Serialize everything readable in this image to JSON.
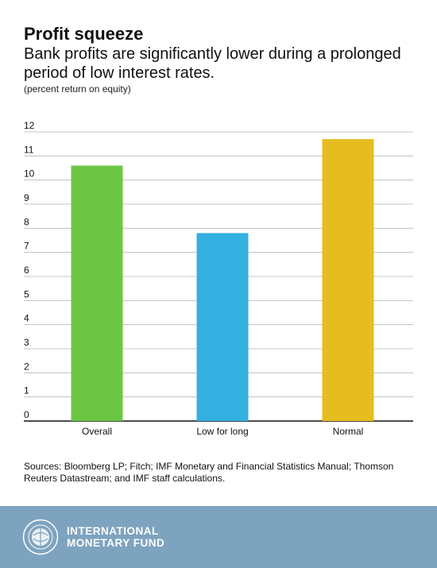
{
  "header": {
    "title": "Profit squeeze",
    "subtitle": "Bank profits are significantly lower during a prolonged period of low interest rates.",
    "unit": "(percent return on equity)"
  },
  "chart_data": {
    "type": "bar",
    "categories": [
      "Overall",
      "Low for long",
      "Normal"
    ],
    "values": [
      10.6,
      7.8,
      11.7
    ],
    "colors": [
      "#6cc644",
      "#34b0e0",
      "#e6bd1e"
    ],
    "ylim": [
      0,
      12
    ],
    "yticks": [
      0,
      1,
      2,
      3,
      4,
      5,
      6,
      7,
      8,
      9,
      10,
      11,
      12
    ],
    "grid": true
  },
  "sources": "Sources: Bloomberg LP; Fitch; IMF Monetary and Financial Statistics Manual; Thomson Reuters Datastream; and IMF staff calculations.",
  "footer": {
    "org_line1": "INTERNATIONAL",
    "org_line2": "MONETARY FUND",
    "logo_icon": "imf-seal-icon",
    "background": "#7da3bf"
  }
}
